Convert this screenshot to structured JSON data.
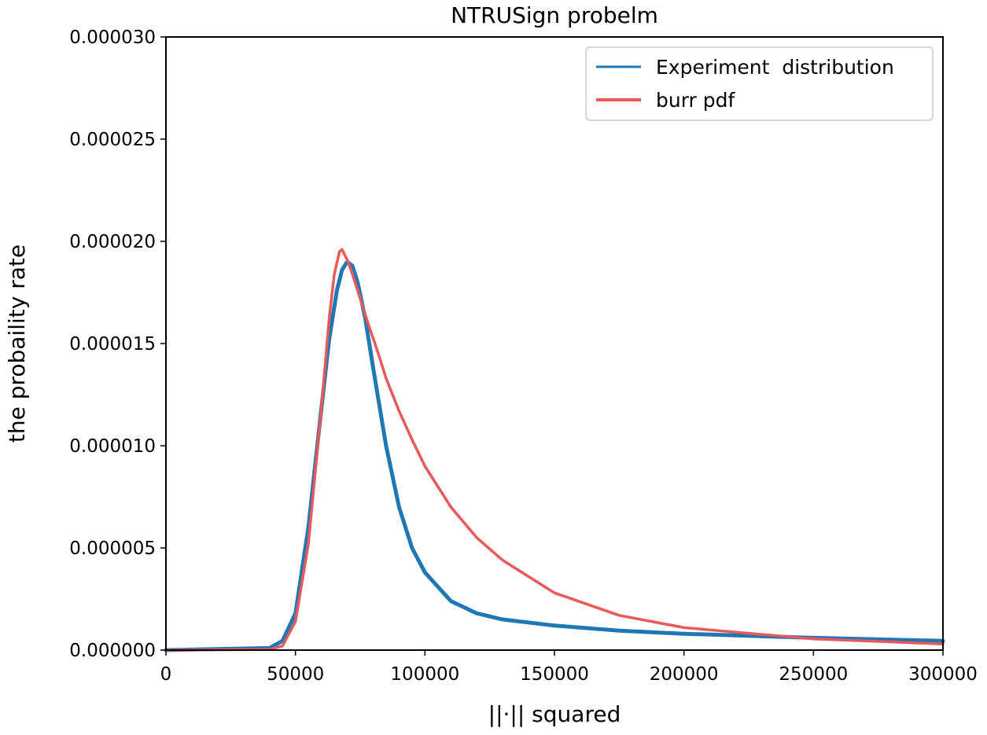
{
  "chart_data": {
    "type": "line",
    "title": "NTRUSign probelm",
    "xlabel": "||·|| squared",
    "ylabel": "the probaility rate",
    "xlim": [
      0,
      300000
    ],
    "ylim": [
      0,
      3e-05
    ],
    "x_ticks": [
      "0",
      "50000",
      "100000",
      "150000",
      "200000",
      "250000",
      "300000"
    ],
    "y_ticks": [
      "0.000000",
      "0.000005",
      "0.000010",
      "0.000015",
      "0.000020",
      "0.000025",
      "0.000030"
    ],
    "legend_position": "top-right",
    "grid": false,
    "series": [
      {
        "name": "Experiment  distribution",
        "color": "#1f77b4",
        "x": [
          0,
          40000,
          45000,
          50000,
          55000,
          60000,
          63000,
          66000,
          68000,
          70000,
          72000,
          74000,
          77000,
          80000,
          85000,
          90000,
          95000,
          100000,
          110000,
          120000,
          130000,
          150000,
          175000,
          200000,
          250000,
          300000
        ],
        "y": [
          0,
          1e-07,
          4.5e-07,
          1.8e-06,
          6e-06,
          1.18e-05,
          1.52e-05,
          1.76e-05,
          1.86e-05,
          1.9e-05,
          1.88e-05,
          1.8e-05,
          1.62e-05,
          1.38e-05,
          1e-05,
          7e-06,
          5e-06,
          3.8e-06,
          2.4e-06,
          1.8e-06,
          1.5e-06,
          1.2e-06,
          9.5e-07,
          8e-07,
          6e-07,
          4.5e-07
        ]
      },
      {
        "name": "burr pdf",
        "color": "#e8595b",
        "x": [
          0,
          40000,
          45000,
          50000,
          55000,
          60000,
          63000,
          65000,
          67000,
          68000,
          70000,
          72000,
          75000,
          78000,
          82000,
          85000,
          90000,
          95000,
          100000,
          110000,
          120000,
          130000,
          150000,
          175000,
          200000,
          250000,
          300000
        ],
        "y": [
          0,
          3e-08,
          2e-07,
          1.4e-06,
          5.2e-06,
          1.18e-05,
          1.62e-05,
          1.84e-05,
          1.95e-05,
          1.96e-05,
          1.91e-05,
          1.84e-05,
          1.72e-05,
          1.6e-05,
          1.45e-05,
          1.33e-05,
          1.17e-05,
          1.03e-05,
          9e-06,
          7e-06,
          5.5e-06,
          4.4e-06,
          2.8e-06,
          1.7e-06,
          1.1e-06,
          5.5e-07,
          3e-07
        ]
      }
    ]
  }
}
